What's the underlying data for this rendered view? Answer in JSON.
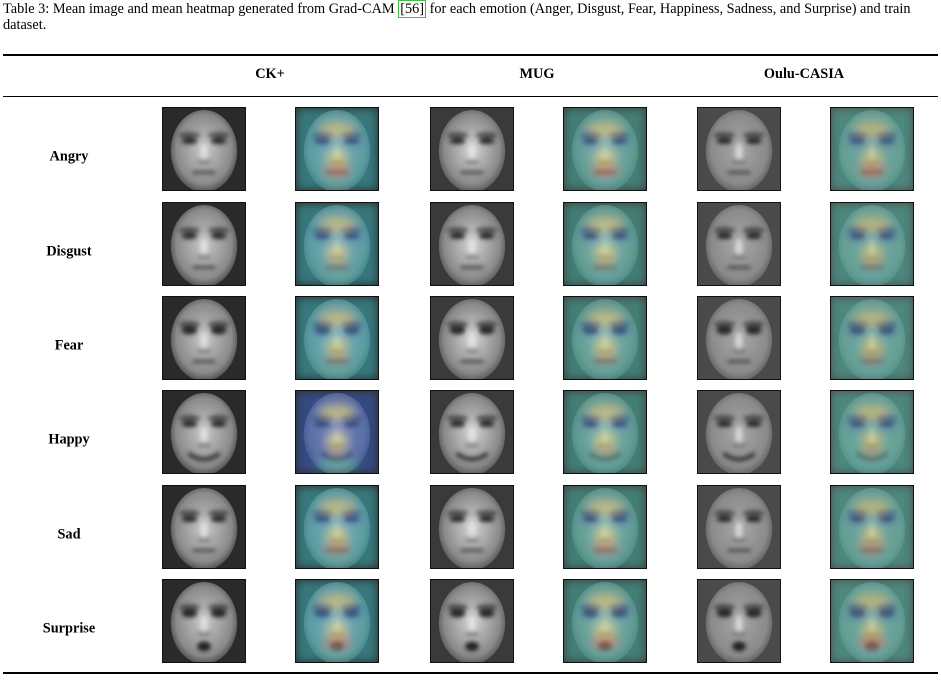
{
  "caption": {
    "before_cite": "Table 3: Mean image and mean heatmap generated from Grad-CAM ",
    "cite": "[56]",
    "after_cite": " for each emotion (Anger, Disgust, Fear, Happiness, Sadness, and Surprise) and train dataset."
  },
  "columns": [
    "CK+",
    "MUG",
    "Oulu-CASIA"
  ],
  "rows": [
    "Angry",
    "Disgust",
    "Fear",
    "Happy",
    "Sad",
    "Surprise"
  ],
  "cell_types": [
    "mean-image",
    "mean-heatmap"
  ],
  "datasets": [
    {
      "name": "CK+",
      "face_bg": "#2a2a2a",
      "skin": "#c8c8c8",
      "heat_tint": "#3fa8b0"
    },
    {
      "name": "MUG",
      "face_bg": "#3a3a3a",
      "skin": "#d4d4d4",
      "heat_tint": "#4aa89a"
    },
    {
      "name": "Oulu-CASIA",
      "face_bg": "#4a4a4a",
      "skin": "#a8a8a8",
      "heat_tint": "#4fae9e"
    }
  ],
  "heat_colors": {
    "low": "#3d5fb8",
    "mid": "#3fb0a8",
    "high_yellow": "#c9c86a",
    "high_red": "#c9604a"
  }
}
